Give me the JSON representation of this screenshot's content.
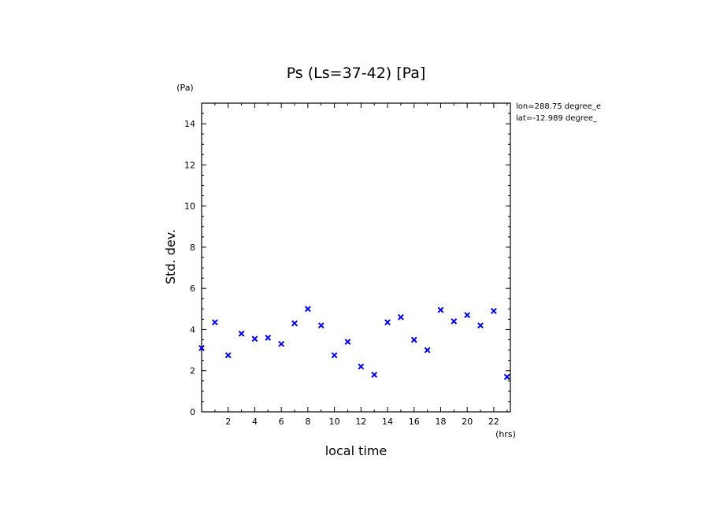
{
  "chart_data": {
    "type": "scatter",
    "title": "Ps (Ls=37-42) [Pa]",
    "xlabel": "local time",
    "ylabel": "Std. dev.",
    "x_unit": "(hrs)",
    "y_unit": "(Pa)",
    "xlim": [
      0,
      23.25
    ],
    "ylim": [
      0,
      15
    ],
    "xticks": [
      "2",
      "4",
      "6",
      "8",
      "10",
      "12",
      "14",
      "16",
      "18",
      "20",
      "22"
    ],
    "yticks": [
      "0",
      "2",
      "4",
      "6",
      "8",
      "10",
      "12",
      "14"
    ],
    "annotations": [
      "lon=288.75 degree_e",
      "lat=-12.989 degree_"
    ],
    "marker": "x",
    "color": "#0000e0",
    "grid": false,
    "series": [
      {
        "x": [
          0.0,
          1.0,
          2.0,
          3.0,
          4.0,
          5.0,
          6.0,
          7.0,
          8.0,
          9.0,
          10.0,
          11.0,
          12.0,
          13.0,
          14.0,
          15.0,
          16.0,
          17.0,
          18.0,
          19.0,
          20.0,
          21.0,
          22.0,
          23.0
        ],
        "y": [
          3.1,
          4.35,
          2.75,
          3.8,
          3.55,
          3.6,
          3.3,
          4.3,
          5.0,
          4.2,
          2.75,
          3.4,
          2.2,
          1.8,
          4.35,
          4.6,
          3.5,
          3.0,
          4.95,
          4.4,
          4.7,
          4.2,
          4.9,
          1.7
        ]
      }
    ]
  }
}
